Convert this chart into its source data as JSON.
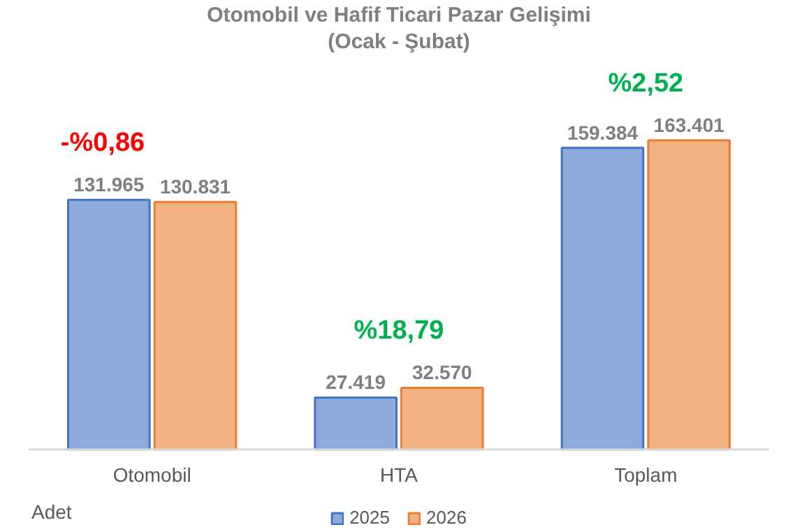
{
  "chart_data": {
    "type": "bar",
    "title": "Otomobil ve Hafif Ticari Pazar Gelişimi",
    "subtitle": "(Ocak - Şubat)",
    "categories": [
      "Otomobil",
      "HTA",
      "Toplam"
    ],
    "series": [
      {
        "name": "2025",
        "color": "#8faadc",
        "values": [
          131965,
          27419,
          159384
        ],
        "value_labels": [
          "131.965",
          "27.419",
          "159.384"
        ]
      },
      {
        "name": "2026",
        "color": "#f4b183",
        "values": [
          130831,
          32570,
          163401
        ],
        "value_labels": [
          "130.831",
          "32.570",
          "163.401"
        ]
      }
    ],
    "annotations": [
      "-%0,86",
      "%18,79",
      "%2,52",
      "Adet"
    ],
    "legend": "bottom"
  }
}
